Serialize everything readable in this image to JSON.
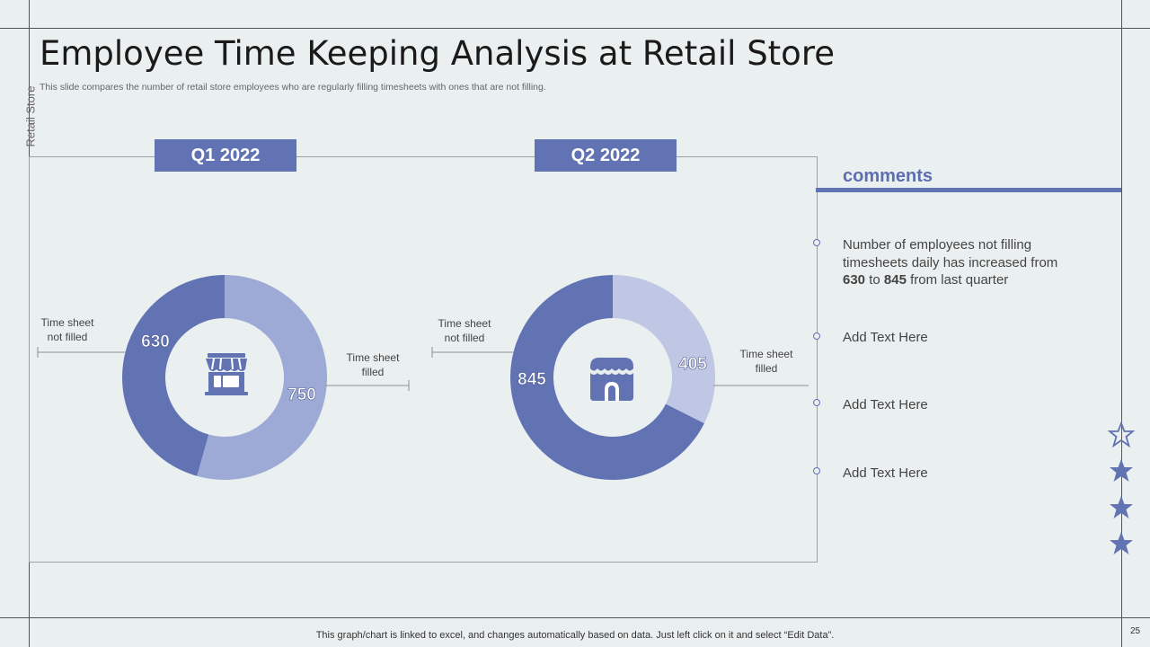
{
  "header": {
    "title": "Employee Time Keeping Analysis at Retail Store",
    "subtitle": "This slide compares the number of retail store employees who are regularly filling timesheets with ones that are not filling.",
    "side_label": "Retail Store"
  },
  "quarters": {
    "q1_label": "Q1 2022",
    "q2_label": "Q2 2022"
  },
  "callouts": {
    "not_filled": "Time sheet not filled",
    "filled": "Time sheet filled"
  },
  "comments": {
    "title": "comments",
    "items": [
      {
        "pre": "Number of employees not filling timesheets daily has increased from ",
        "b1": "630",
        "mid": " to ",
        "b2": "845",
        "post": " from last quarter"
      },
      {
        "text": "Add Text Here"
      },
      {
        "text": "Add Text Here"
      },
      {
        "text": "Add Text Here"
      }
    ]
  },
  "footer": {
    "note": "This graph/chart is linked to excel,  and changes automatically based on data. Just left click on it and select “Edit Data”.",
    "page_number": "25"
  },
  "colors": {
    "accent": "#6273b4",
    "q1_filled": "#9eaad6",
    "q2_filled": "#bfc7e5",
    "background": "#eaeff0"
  },
  "icons": [
    "store-icon",
    "shop-icon",
    "star-outline-icon",
    "star-icon"
  ],
  "chart_data": [
    {
      "type": "pie",
      "title": "Q1 2022",
      "categories": [
        "Time sheet not filled",
        "Time sheet filled"
      ],
      "values": [
        630,
        750
      ],
      "colors": [
        "#6273b4",
        "#9eaad6"
      ]
    },
    {
      "type": "pie",
      "title": "Q2 2022",
      "categories": [
        "Time sheet not filled",
        "Time sheet filled"
      ],
      "values": [
        845,
        405
      ],
      "colors": [
        "#6273b4",
        "#bfc7e5"
      ]
    }
  ]
}
